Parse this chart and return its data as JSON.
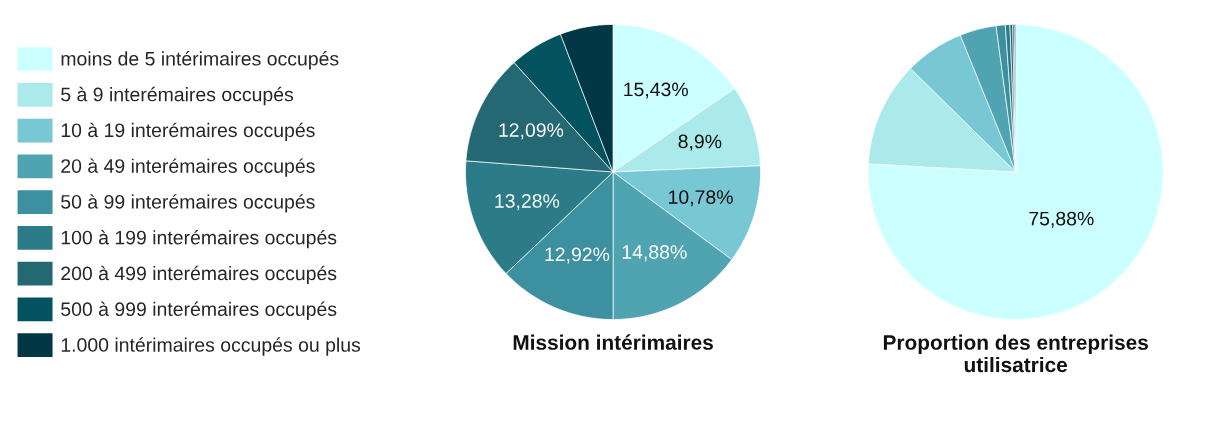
{
  "chart_data": [
    {
      "type": "pie",
      "title": "Mission intérimaires",
      "legend": "left",
      "categories": [
        "moins de 5 intérimaires occupés",
        "5 à 9 interémaires occupés",
        "10 à 19 interémaires occupés",
        "20 à 49 interémaires occupés",
        "50 à 99 interémaires occupés",
        "100 à 199 interémaires occupés",
        "200 à 499 interémaires occupés",
        "500 à 999 interémaires occupés",
        "1.000 intérimaires occupés ou plus"
      ],
      "values": [
        15.43,
        8.9,
        10.78,
        14.88,
        12.92,
        13.28,
        12.09,
        5.9,
        5.8
      ],
      "value_labels": [
        "15,43%",
        "8,9%",
        "10,78%",
        "14,88%",
        "12,92%",
        "13,28%",
        "12,09%",
        null,
        null
      ],
      "colors": [
        "#ccffff",
        "#aaeaea",
        "#77c7d4",
        "#50a3b1",
        "#3d90a0",
        "#2b7c88",
        "#236872",
        "#02535f",
        "#023845"
      ]
    },
    {
      "type": "pie",
      "title": "Proportion des entreprises\nutilisatrice",
      "legend": false,
      "categories": [
        null,
        null,
        null,
        null,
        null,
        null,
        null,
        null,
        null
      ],
      "values": [
        75.88,
        11.5,
        6.5,
        4.0,
        1.0,
        0.5,
        0.3,
        0.17,
        0.15
      ],
      "value_labels": [
        "75,88%",
        null,
        null,
        null,
        null,
        null,
        null,
        null,
        null
      ],
      "colors": [
        "#ccffff",
        "#aaeaea",
        "#77c7d4",
        "#50a3b1",
        "#3d90a0",
        "#2b7c88",
        "#236872",
        "#02535f",
        "#023845"
      ]
    }
  ]
}
